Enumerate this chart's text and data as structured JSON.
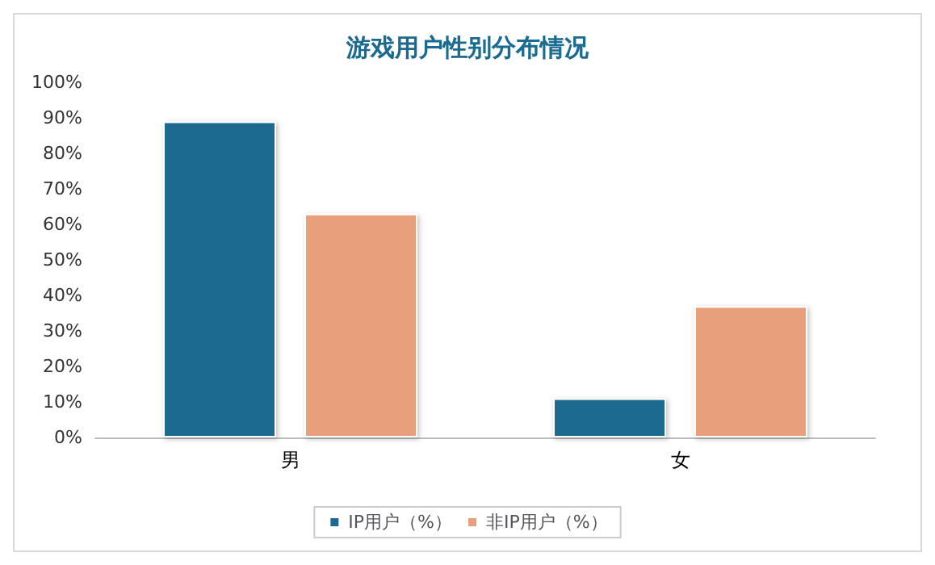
{
  "chart_data": {
    "type": "bar",
    "title": "游戏用户性别分布情况",
    "categories": [
      "男",
      "女"
    ],
    "series": [
      {
        "name": "IP用户（%）",
        "color": "#1b6a8f",
        "values": [
          89,
          11
        ]
      },
      {
        "name": "非IP用户（%）",
        "color": "#e8a07c",
        "values": [
          63,
          37
        ]
      }
    ],
    "ylim": [
      0,
      100
    ],
    "yticks": [
      {
        "value": 0,
        "label": "0%"
      },
      {
        "value": 10,
        "label": "10%"
      },
      {
        "value": 20,
        "label": "20%"
      },
      {
        "value": 30,
        "label": "30%"
      },
      {
        "value": 40,
        "label": "40%"
      },
      {
        "value": 50,
        "label": "50%"
      },
      {
        "value": 60,
        "label": "60%"
      },
      {
        "value": 70,
        "label": "70%"
      },
      {
        "value": 80,
        "label": "80%"
      },
      {
        "value": 90,
        "label": "90%"
      },
      {
        "value": 100,
        "label": "100%"
      }
    ],
    "grid": false,
    "legend": "bottom"
  }
}
